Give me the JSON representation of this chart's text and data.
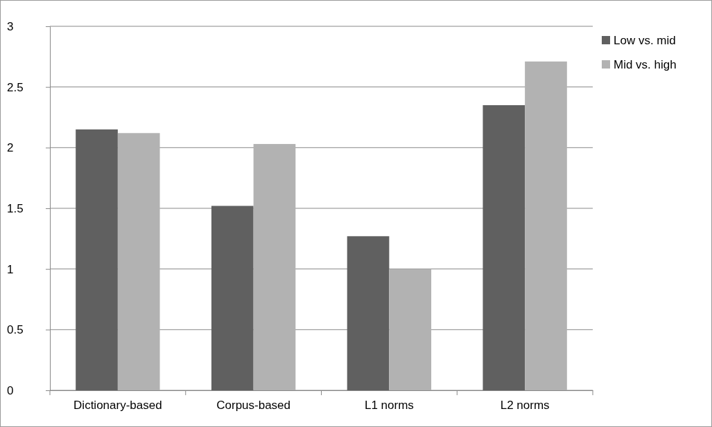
{
  "chart_data": {
    "type": "bar",
    "categories": [
      "Dictionary-based",
      "Corpus-based",
      "L1 norms",
      "L2 norms"
    ],
    "series": [
      {
        "name": "Low vs. mid",
        "color": "#606060",
        "values": [
          2.15,
          1.52,
          1.27,
          2.35
        ]
      },
      {
        "name": "Mid vs. high",
        "color": "#b2b2b2",
        "values": [
          2.12,
          2.03,
          1.0,
          2.71
        ]
      }
    ],
    "ylim": [
      0,
      3
    ],
    "yticks": [
      0,
      0.5,
      1,
      1.5,
      2,
      2.5,
      3
    ],
    "grid": "y",
    "legend": "right"
  }
}
